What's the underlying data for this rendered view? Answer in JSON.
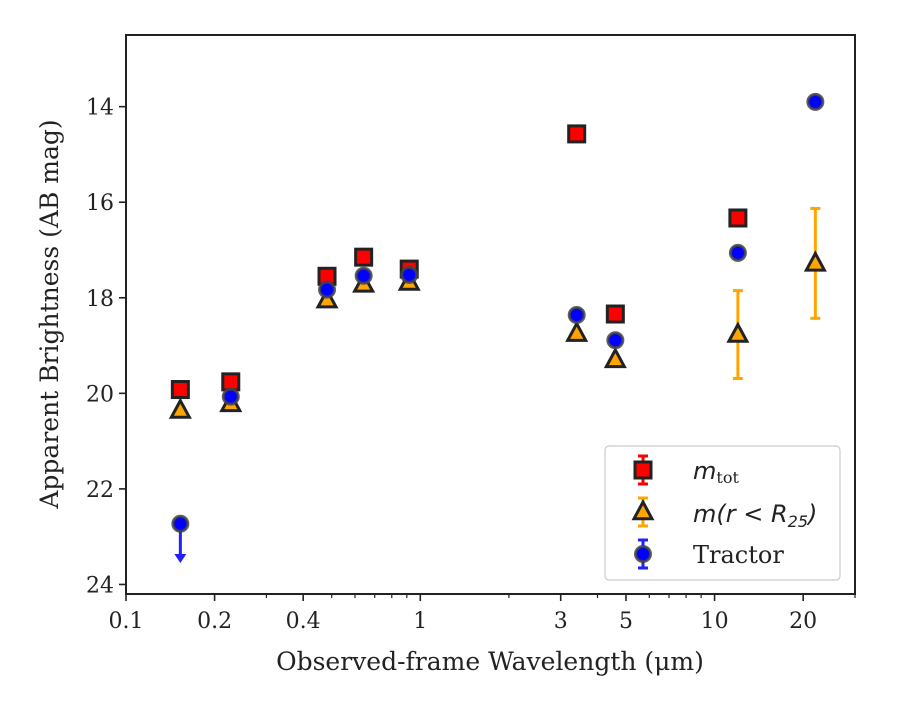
{
  "chart_data": {
    "type": "scatter",
    "xlabel": "Observed-frame Wavelength (μm)",
    "ylabel": "Apparent Brightness (AB mag)",
    "xscale": "log",
    "xlim": [
      0.1,
      30
    ],
    "ylim": [
      24.2,
      12.5
    ],
    "y_inverted": true,
    "xticks": [
      0.1,
      0.2,
      0.4,
      1,
      3,
      5,
      10,
      20
    ],
    "xtick_labels": [
      "0.1",
      "0.2",
      "0.4",
      "1",
      "3",
      "5",
      "10",
      "20"
    ],
    "yticks": [
      14,
      16,
      18,
      20,
      22,
      24
    ],
    "ytick_labels": [
      "14",
      "16",
      "18",
      "20",
      "22",
      "24"
    ],
    "grid": false,
    "legend_position": "lower-right",
    "series": [
      {
        "name": "m_tot",
        "marker": "square",
        "color": "#ff0000",
        "points": [
          {
            "x": 0.153,
            "y": 19.92,
            "err": 0.05
          },
          {
            "x": 0.227,
            "y": 19.76,
            "err": 0.05
          },
          {
            "x": 0.482,
            "y": 17.55,
            "err": 0.05
          },
          {
            "x": 0.642,
            "y": 17.15,
            "err": 0.05
          },
          {
            "x": 0.917,
            "y": 17.4,
            "err": 0.05
          },
          {
            "x": 3.4,
            "y": 14.57,
            "err": 0.03
          },
          {
            "x": 4.6,
            "y": 18.34,
            "err": 0.05
          },
          {
            "x": 12.0,
            "y": 16.33,
            "err": 0.05
          }
        ]
      },
      {
        "name": "m(r < R25)",
        "marker": "triangle",
        "color": "#ffa500",
        "points": [
          {
            "x": 0.153,
            "y": 20.36,
            "err": 0.05
          },
          {
            "x": 0.227,
            "y": 20.22,
            "err": 0.05
          },
          {
            "x": 0.482,
            "y": 18.05,
            "err": 0.05
          },
          {
            "x": 0.642,
            "y": 17.72,
            "err": 0.05
          },
          {
            "x": 0.917,
            "y": 17.68,
            "err": 0.05
          },
          {
            "x": 3.4,
            "y": 18.75,
            "err": 0.05
          },
          {
            "x": 4.6,
            "y": 19.3,
            "err": 0.05
          },
          {
            "x": 12.0,
            "y": 18.77,
            "err": 0.92
          },
          {
            "x": 22.0,
            "y": 17.28,
            "err": 1.15
          }
        ]
      },
      {
        "name": "Tractor",
        "marker": "circle",
        "color": "#0000ff",
        "points": [
          {
            "x": 0.153,
            "y": 22.73,
            "err": 0.0,
            "upper_limit": true,
            "limit_to": 23.55
          },
          {
            "x": 0.227,
            "y": 20.07,
            "err": 0.05
          },
          {
            "x": 0.482,
            "y": 17.83,
            "err": 0.05
          },
          {
            "x": 0.642,
            "y": 17.54,
            "err": 0.05
          },
          {
            "x": 0.917,
            "y": 17.52,
            "err": 0.05
          },
          {
            "x": 3.4,
            "y": 18.36,
            "err": 0.05
          },
          {
            "x": 4.6,
            "y": 18.89,
            "err": 0.05
          },
          {
            "x": 12.0,
            "y": 17.06,
            "err": 0.05
          },
          {
            "x": 22.0,
            "y": 13.9,
            "err": 0.05
          }
        ]
      }
    ]
  },
  "legend": {
    "mtot_main": "m",
    "mtot_sub": "tot",
    "mr25_pre": "m(r < R",
    "mr25_sub": "25",
    "mr25_post": ")",
    "tractor": "Tractor"
  }
}
